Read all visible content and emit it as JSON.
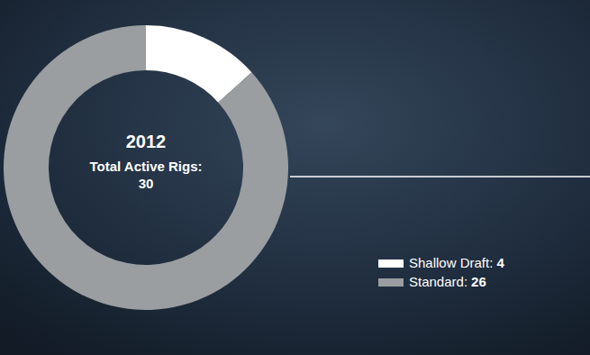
{
  "chart_data": {
    "type": "pie",
    "title": "2012",
    "subtitle": "Total Active Rigs:",
    "total": 30,
    "categories": [
      "Shallow Draft:",
      "Standard:"
    ],
    "values": [
      4,
      26
    ],
    "colors": [
      "#ffffff",
      "#9a9ea1"
    ],
    "legend": "right"
  }
}
